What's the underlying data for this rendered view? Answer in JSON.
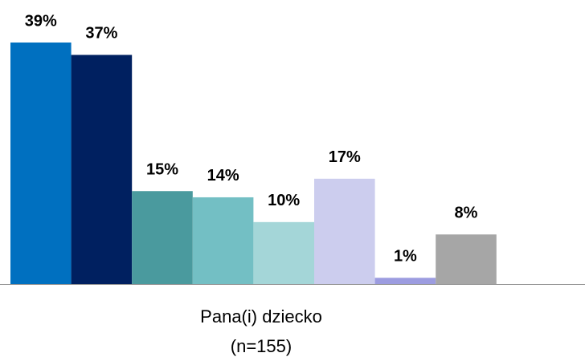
{
  "chart_data": {
    "type": "bar",
    "categories": [
      "Pana(i) dziecko\n(n=155)"
    ],
    "series": [
      {
        "color": "#0070c0",
        "values": [
          39
        ],
        "value_labels": [
          "39%"
        ]
      },
      {
        "color": "#002060",
        "values": [
          37
        ],
        "value_labels": [
          "37%"
        ]
      },
      {
        "color": "#4a9a9e",
        "values": [
          15
        ],
        "value_labels": [
          "15%"
        ]
      },
      {
        "color": "#73bfc4",
        "values": [
          14
        ],
        "value_labels": [
          "14%"
        ]
      },
      {
        "color": "#a4d6d8",
        "values": [
          10
        ],
        "value_labels": [
          "10%"
        ]
      },
      {
        "color": "#cccdee",
        "values": [
          17
        ],
        "value_labels": [
          "17%"
        ]
      },
      {
        "color": "#9c9ce0",
        "values": [
          1
        ],
        "value_labels": [
          "1%"
        ]
      },
      {
        "color": "#a6a6a6",
        "values": [
          8
        ],
        "value_labels": [
          "8%"
        ]
      }
    ]
  }
}
